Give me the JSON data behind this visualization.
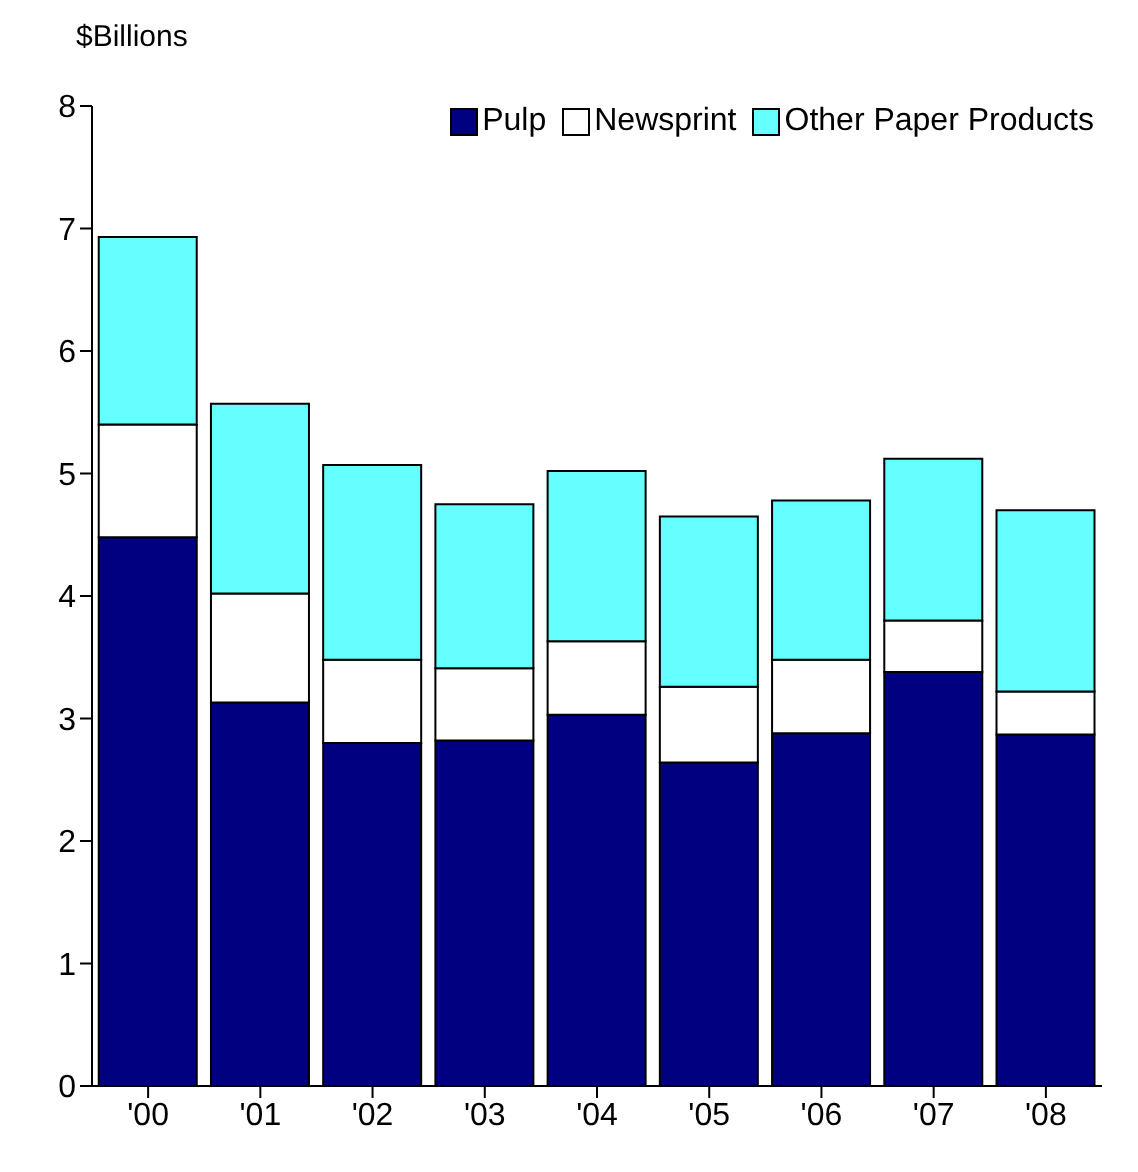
{
  "chart_data": {
    "type": "bar",
    "stacked": true,
    "ylabel": "$Billions",
    "categories": [
      "'00",
      "'01",
      "'02",
      "'03",
      "'04",
      "'05",
      "'06",
      "'07",
      "'08"
    ],
    "series": [
      {
        "name": "Pulp",
        "color": "#000080",
        "values": [
          4.48,
          3.13,
          2.8,
          2.82,
          3.03,
          2.64,
          2.88,
          3.38,
          2.87
        ]
      },
      {
        "name": "Newsprint",
        "color": "#ffffff",
        "values": [
          0.92,
          0.89,
          0.68,
          0.59,
          0.6,
          0.62,
          0.6,
          0.42,
          0.35
        ]
      },
      {
        "name": "Other Paper Products",
        "color": "#66ffff",
        "values": [
          1.53,
          1.55,
          1.59,
          1.34,
          1.39,
          1.39,
          1.3,
          1.32,
          1.48
        ]
      }
    ],
    "ylim": [
      0,
      8
    ],
    "yticks": [
      0,
      1,
      2,
      3,
      4,
      5,
      6,
      7,
      8
    ],
    "grid": false,
    "legend": "top right"
  }
}
